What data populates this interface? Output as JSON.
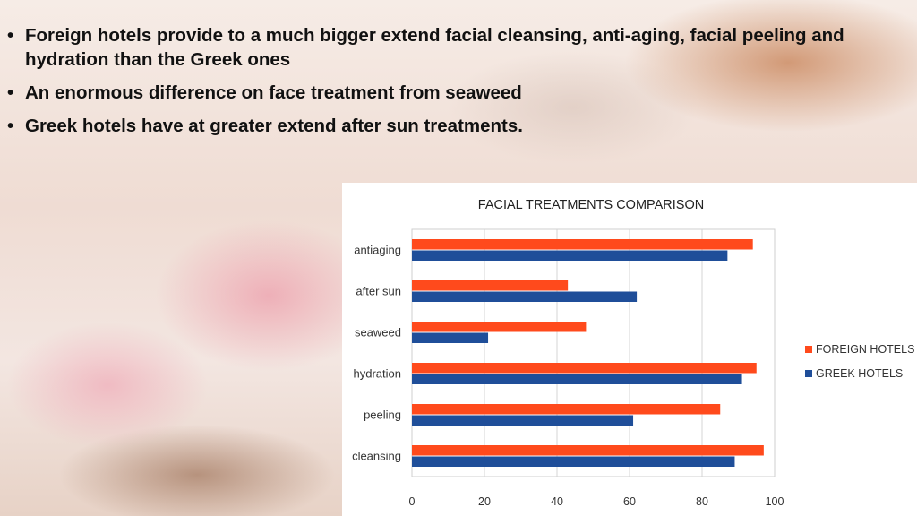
{
  "bullets": [
    "Foreign hotels provide to a much bigger extend facial cleansing, anti-aging, facial peeling and hydration than the Greek ones",
    "An enormous difference on face treatment from seaweed",
    "Greek hotels have at greater extend after sun treatments."
  ],
  "bullet_symbol": "•",
  "chart_data": {
    "type": "bar",
    "orientation": "horizontal",
    "title": "FACIAL TREATMENTS COMPARISON",
    "categories": [
      "antiaging",
      "after sun",
      "seaweed",
      "hydration",
      "peeling",
      "cleansing"
    ],
    "series": [
      {
        "name": "FOREIGN HOTELS",
        "color": "#ff4a1c",
        "values": [
          94,
          43,
          48,
          95,
          85,
          97
        ]
      },
      {
        "name": "GREEK HOTELS",
        "color": "#1f4e99",
        "values": [
          87,
          62,
          21,
          91,
          61,
          89
        ]
      }
    ],
    "xlim": [
      0,
      100
    ],
    "xticks": [
      0,
      20,
      40,
      60,
      80,
      100
    ],
    "grid": true,
    "legend_position": "right"
  }
}
